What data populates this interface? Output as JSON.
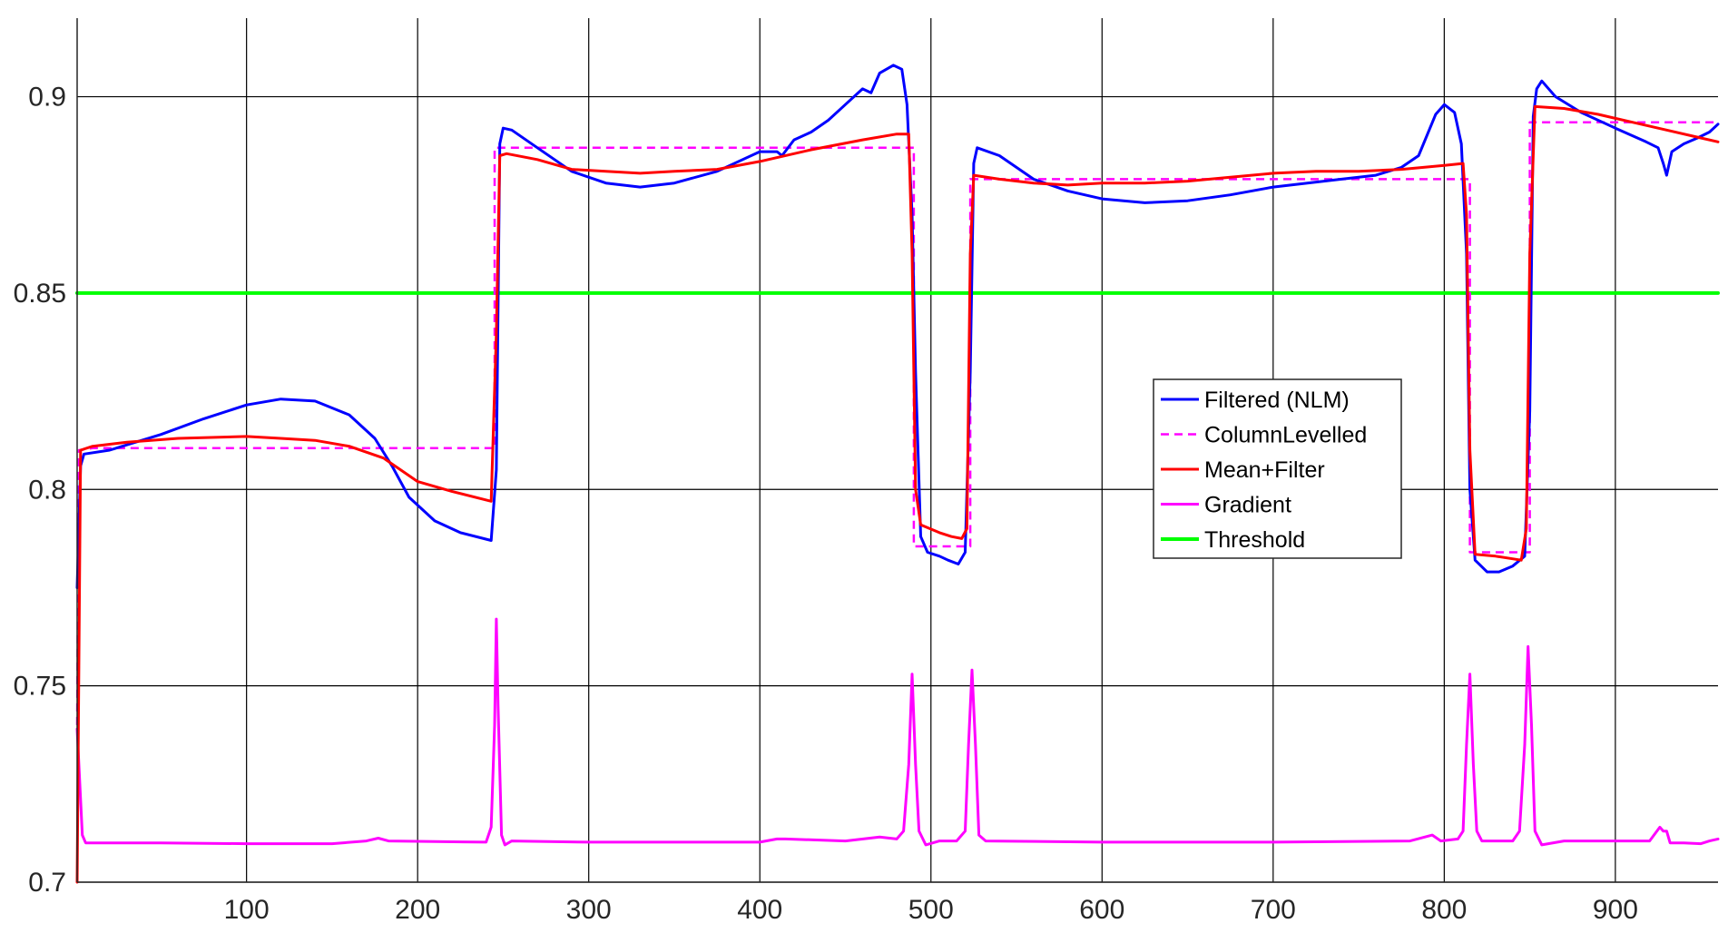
{
  "chart_data": {
    "type": "line",
    "title": "",
    "xlabel": "",
    "ylabel": "",
    "xlim": [
      1,
      960
    ],
    "ylim": [
      0.7,
      0.92
    ],
    "x_ticks": [
      100,
      200,
      300,
      400,
      500,
      600,
      700,
      800,
      900
    ],
    "x_tick_labels": [
      "100",
      "200",
      "300",
      "400",
      "500",
      "600",
      "700",
      "800",
      "900"
    ],
    "y_ticks": [
      0.7,
      0.75,
      0.8,
      0.85,
      0.9
    ],
    "y_tick_labels": [
      "0.7",
      "0.75",
      "0.8",
      "0.85",
      "0.9"
    ],
    "grid": true,
    "legend_position": "center-right",
    "series": [
      {
        "name": "Filtered (NLM)",
        "color": "#0000ff",
        "style": "solid",
        "points": [
          [
            1,
            0.775
          ],
          [
            3,
            0.806
          ],
          [
            5,
            0.809
          ],
          [
            20,
            0.81
          ],
          [
            50,
            0.814
          ],
          [
            75,
            0.818
          ],
          [
            100,
            0.8215
          ],
          [
            120,
            0.823
          ],
          [
            140,
            0.8225
          ],
          [
            160,
            0.819
          ],
          [
            175,
            0.813
          ],
          [
            185,
            0.806
          ],
          [
            195,
            0.798
          ],
          [
            210,
            0.792
          ],
          [
            225,
            0.789
          ],
          [
            243,
            0.787
          ],
          [
            246,
            0.805
          ],
          [
            248,
            0.888
          ],
          [
            250,
            0.892
          ],
          [
            255,
            0.8915
          ],
          [
            270,
            0.887
          ],
          [
            290,
            0.881
          ],
          [
            310,
            0.878
          ],
          [
            330,
            0.877
          ],
          [
            350,
            0.878
          ],
          [
            375,
            0.881
          ],
          [
            400,
            0.886
          ],
          [
            410,
            0.886
          ],
          [
            413,
            0.885
          ],
          [
            420,
            0.889
          ],
          [
            430,
            0.891
          ],
          [
            440,
            0.894
          ],
          [
            450,
            0.898
          ],
          [
            460,
            0.902
          ],
          [
            465,
            0.901
          ],
          [
            470,
            0.906
          ],
          [
            478,
            0.908
          ],
          [
            483,
            0.907
          ],
          [
            486,
            0.898
          ],
          [
            489,
            0.87
          ],
          [
            491,
            0.83
          ],
          [
            494,
            0.788
          ],
          [
            498,
            0.784
          ],
          [
            505,
            0.783
          ],
          [
            510,
            0.782
          ],
          [
            516,
            0.781
          ],
          [
            520,
            0.784
          ],
          [
            523,
            0.83
          ],
          [
            525,
            0.883
          ],
          [
            527,
            0.887
          ],
          [
            540,
            0.885
          ],
          [
            560,
            0.879
          ],
          [
            580,
            0.876
          ],
          [
            600,
            0.874
          ],
          [
            625,
            0.873
          ],
          [
            650,
            0.8735
          ],
          [
            675,
            0.875
          ],
          [
            700,
            0.877
          ],
          [
            720,
            0.878
          ],
          [
            740,
            0.879
          ],
          [
            760,
            0.88
          ],
          [
            775,
            0.882
          ],
          [
            785,
            0.885
          ],
          [
            795,
            0.8955
          ],
          [
            800,
            0.898
          ],
          [
            806,
            0.896
          ],
          [
            810,
            0.888
          ],
          [
            813,
            0.86
          ],
          [
            815,
            0.8
          ],
          [
            818,
            0.782
          ],
          [
            825,
            0.779
          ],
          [
            832,
            0.779
          ],
          [
            840,
            0.7805
          ],
          [
            847,
            0.783
          ],
          [
            850,
            0.82
          ],
          [
            852,
            0.895
          ],
          [
            854,
            0.902
          ],
          [
            857,
            0.904
          ],
          [
            865,
            0.9
          ],
          [
            880,
            0.896
          ],
          [
            900,
            0.892
          ],
          [
            918,
            0.8885
          ],
          [
            925,
            0.887
          ],
          [
            928,
            0.883
          ],
          [
            930,
            0.88
          ],
          [
            933,
            0.886
          ],
          [
            940,
            0.888
          ],
          [
            948,
            0.8895
          ],
          [
            955,
            0.891
          ],
          [
            960,
            0.893
          ]
        ]
      },
      {
        "name": "ColumnLevelled",
        "color": "#ff00ff",
        "style": "dashed",
        "points": [
          [
            1,
            0.74
          ],
          [
            2,
            0.81
          ],
          [
            10,
            0.8105
          ],
          [
            245,
            0.8105
          ],
          [
            245,
            0.887
          ],
          [
            490,
            0.887
          ],
          [
            490,
            0.7855
          ],
          [
            523,
            0.7855
          ],
          [
            523,
            0.879
          ],
          [
            815,
            0.879
          ],
          [
            815,
            0.784
          ],
          [
            850,
            0.784
          ],
          [
            850,
            0.8935
          ],
          [
            960,
            0.8935
          ]
        ]
      },
      {
        "name": "Mean+Filter",
        "color": "#ff0000",
        "style": "solid",
        "points": [
          [
            1,
            0.7
          ],
          [
            2,
            0.755
          ],
          [
            3,
            0.81
          ],
          [
            10,
            0.811
          ],
          [
            30,
            0.812
          ],
          [
            60,
            0.813
          ],
          [
            100,
            0.8135
          ],
          [
            120,
            0.813
          ],
          [
            140,
            0.8125
          ],
          [
            160,
            0.811
          ],
          [
            180,
            0.808
          ],
          [
            200,
            0.802
          ],
          [
            220,
            0.7995
          ],
          [
            243,
            0.797
          ],
          [
            246,
            0.84
          ],
          [
            248,
            0.885
          ],
          [
            252,
            0.8855
          ],
          [
            270,
            0.884
          ],
          [
            290,
            0.8815
          ],
          [
            310,
            0.881
          ],
          [
            330,
            0.8805
          ],
          [
            350,
            0.881
          ],
          [
            375,
            0.8815
          ],
          [
            400,
            0.8835
          ],
          [
            430,
            0.8865
          ],
          [
            460,
            0.889
          ],
          [
            480,
            0.8905
          ],
          [
            487,
            0.8905
          ],
          [
            489,
            0.86
          ],
          [
            491,
            0.8
          ],
          [
            494,
            0.791
          ],
          [
            505,
            0.789
          ],
          [
            512,
            0.788
          ],
          [
            518,
            0.7875
          ],
          [
            521,
            0.79
          ],
          [
            523,
            0.86
          ],
          [
            525,
            0.88
          ],
          [
            540,
            0.879
          ],
          [
            560,
            0.878
          ],
          [
            580,
            0.8775
          ],
          [
            600,
            0.878
          ],
          [
            625,
            0.878
          ],
          [
            650,
            0.8785
          ],
          [
            675,
            0.8795
          ],
          [
            700,
            0.8805
          ],
          [
            725,
            0.881
          ],
          [
            750,
            0.881
          ],
          [
            775,
            0.8815
          ],
          [
            800,
            0.8825
          ],
          [
            811,
            0.883
          ],
          [
            813,
            0.87
          ],
          [
            815,
            0.81
          ],
          [
            818,
            0.7835
          ],
          [
            830,
            0.783
          ],
          [
            845,
            0.782
          ],
          [
            848,
            0.79
          ],
          [
            850,
            0.86
          ],
          [
            853,
            0.8975
          ],
          [
            870,
            0.897
          ],
          [
            890,
            0.8955
          ],
          [
            910,
            0.8935
          ],
          [
            930,
            0.8915
          ],
          [
            950,
            0.8895
          ],
          [
            960,
            0.8885
          ]
        ]
      },
      {
        "name": "Gradient",
        "color": "#ff00ff",
        "style": "solid",
        "points": [
          [
            1,
            0.739
          ],
          [
            4,
            0.712
          ],
          [
            6,
            0.71
          ],
          [
            50,
            0.71
          ],
          [
            100,
            0.7098
          ],
          [
            150,
            0.7098
          ],
          [
            170,
            0.7105
          ],
          [
            177,
            0.7112
          ],
          [
            183,
            0.7105
          ],
          [
            200,
            0.7104
          ],
          [
            240,
            0.7102
          ],
          [
            243,
            0.714
          ],
          [
            245,
            0.74
          ],
          [
            246,
            0.767
          ],
          [
            247,
            0.745
          ],
          [
            249,
            0.712
          ],
          [
            251,
            0.7095
          ],
          [
            255,
            0.7105
          ],
          [
            300,
            0.7102
          ],
          [
            350,
            0.7102
          ],
          [
            400,
            0.7102
          ],
          [
            410,
            0.711
          ],
          [
            415,
            0.711
          ],
          [
            450,
            0.7105
          ],
          [
            470,
            0.7115
          ],
          [
            480,
            0.711
          ],
          [
            484,
            0.713
          ],
          [
            487,
            0.73
          ],
          [
            489,
            0.753
          ],
          [
            491,
            0.73
          ],
          [
            493,
            0.713
          ],
          [
            497,
            0.7095
          ],
          [
            505,
            0.7105
          ],
          [
            515,
            0.7105
          ],
          [
            520,
            0.713
          ],
          [
            522,
            0.735
          ],
          [
            524,
            0.754
          ],
          [
            526,
            0.735
          ],
          [
            528,
            0.712
          ],
          [
            532,
            0.7105
          ],
          [
            600,
            0.7102
          ],
          [
            700,
            0.7102
          ],
          [
            780,
            0.7105
          ],
          [
            793,
            0.712
          ],
          [
            798,
            0.7105
          ],
          [
            808,
            0.711
          ],
          [
            811,
            0.713
          ],
          [
            813,
            0.735
          ],
          [
            815,
            0.753
          ],
          [
            817,
            0.73
          ],
          [
            819,
            0.713
          ],
          [
            822,
            0.7105
          ],
          [
            840,
            0.7105
          ],
          [
            844,
            0.713
          ],
          [
            847,
            0.735
          ],
          [
            849,
            0.76
          ],
          [
            851,
            0.74
          ],
          [
            853,
            0.713
          ],
          [
            857,
            0.7095
          ],
          [
            870,
            0.7105
          ],
          [
            920,
            0.7105
          ],
          [
            926,
            0.714
          ],
          [
            928,
            0.713
          ],
          [
            930,
            0.713
          ],
          [
            932,
            0.71
          ],
          [
            940,
            0.71
          ],
          [
            950,
            0.7098
          ],
          [
            955,
            0.7105
          ],
          [
            960,
            0.711
          ]
        ]
      },
      {
        "name": "Threshold",
        "color": "#00ff00",
        "style": "solid",
        "points": [
          [
            1,
            0.85
          ],
          [
            960,
            0.85
          ]
        ]
      }
    ]
  }
}
